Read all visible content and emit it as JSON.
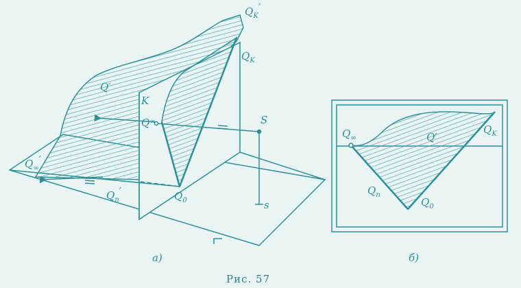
{
  "colors": {
    "background": "#e9f5f4",
    "ink": "#2f8f96",
    "hatch": "#3a9aa1"
  },
  "left_figure": {
    "panel_label": "а)",
    "labels": {
      "Qk_prime_main": "Q",
      "Qk_prime_sub": "K",
      "Qk_prime_mark": "′",
      "Qk_main": "Q",
      "Qk_sub": "K",
      "K": "K",
      "Q_prime": "Q′",
      "Q_inf_main": "Q",
      "Q_inf_sub": "∞",
      "S": "S",
      "Q_inf_prime_main": "Q",
      "Q_inf_prime_sub": "∞",
      "Q_inf_prime_mark": "′",
      "Qn_prime_main": "Q",
      "Qn_prime_sub": "п",
      "Qn_prime_mark": "′",
      "Q0_main": "Q",
      "Q0_sub": "0",
      "s": "s"
    }
  },
  "right_figure": {
    "panel_label": "б)",
    "labels": {
      "Q_inf_main": "Q",
      "Q_inf_sub": "∞",
      "Q_prime": "Q′",
      "Qk_main": "Q",
      "Qk_sub": "K",
      "Qn_main": "Q",
      "Qn_sub": "п",
      "Q0_main": "Q",
      "Q0_sub": "0"
    }
  },
  "caption": "Рис. 57"
}
